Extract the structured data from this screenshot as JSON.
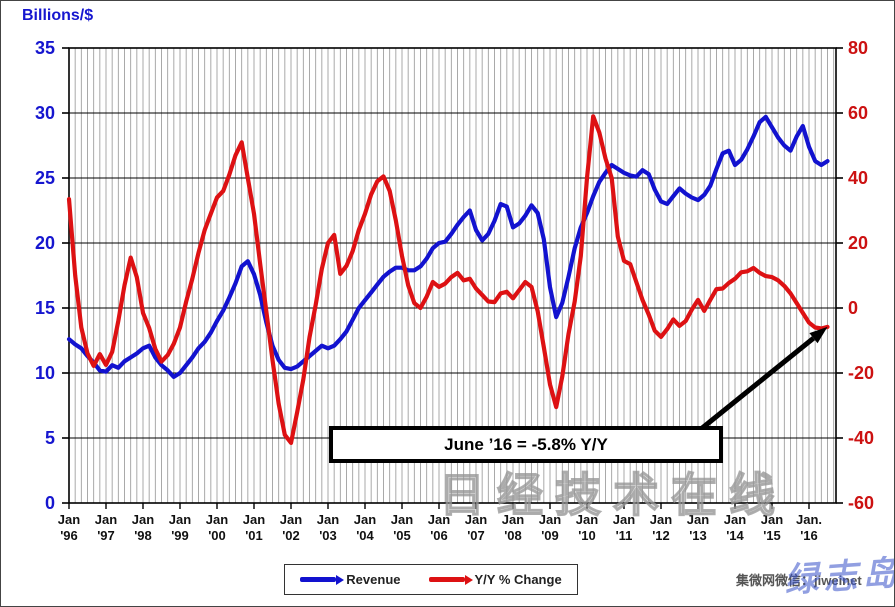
{
  "title": "Billions/$",
  "annotation": {
    "text": "June ’16 = -5.8% Y/Y"
  },
  "legend": {
    "items": [
      {
        "label": "Revenue",
        "color": "#1212cf"
      },
      {
        "label": "Y/Y % Change",
        "color": "#dd1113"
      }
    ]
  },
  "watermarks": {
    "large": "日经技术在线",
    "credit": "集微网微信：jiweinet",
    "signature": "绿志岛"
  },
  "colors": {
    "revenue_line": "#1212cf",
    "yoy_line": "#dd1113",
    "left_axis_text": "#1616cf",
    "right_axis_text": "#cc1111",
    "x_axis_text": "#111111",
    "grid_vertical": "#a0a0a0",
    "grid_horizontal": "#000000",
    "annotation_arrow": "#000000"
  },
  "chart_data": {
    "type": "line",
    "title": "Billions/$",
    "x_start_year": 1996,
    "x_step_months": 2,
    "x_tick_labels": [
      {
        "m": "Jan",
        "y": "'96"
      },
      {
        "m": "Jan",
        "y": "'97"
      },
      {
        "m": "Jan",
        "y": "'98"
      },
      {
        "m": "Jan",
        "y": "'99"
      },
      {
        "m": "Jan",
        "y": "'00"
      },
      {
        "m": "Jan",
        "y": "'01"
      },
      {
        "m": "Jan",
        "y": "'02"
      },
      {
        "m": "Jan",
        "y": "'03"
      },
      {
        "m": "Jan",
        "y": "'04"
      },
      {
        "m": "Jan",
        "y": "'05"
      },
      {
        "m": "Jan",
        "y": "'06"
      },
      {
        "m": "Jan",
        "y": "'07"
      },
      {
        "m": "Jan",
        "y": "'08"
      },
      {
        "m": "Jan",
        "y": "'09"
      },
      {
        "m": "Jan",
        "y": "'10"
      },
      {
        "m": "Jan",
        "y": "'11"
      },
      {
        "m": "Jan",
        "y": "'12"
      },
      {
        "m": "Jan",
        "y": "'13"
      },
      {
        "m": "Jan",
        "y": "'14"
      },
      {
        "m": "Jan",
        "y": "'15"
      },
      {
        "m": "Jan.",
        "y": "'16"
      }
    ],
    "y_left": {
      "label": "Billions/$",
      "min": 0,
      "max": 35,
      "tick_step": 5,
      "color": "#1616cf"
    },
    "y_right": {
      "label": "Y/Y % Change",
      "min": -60,
      "max": 80,
      "tick_step": 20,
      "color": "#cc1111"
    },
    "grid": {
      "vertical_every_months": 2,
      "horizontal_every_left_units": 5
    },
    "legend_position": "bottom-center",
    "annotation": {
      "text": "June ’16 = -5.8% Y/Y",
      "points_to": {
        "x_year": 2016.5,
        "series": "Y/Y % Change",
        "value": -5.8
      }
    },
    "series": [
      {
        "name": "Revenue",
        "axis": "left",
        "color": "#1212cf",
        "values": [
          12.6,
          12.2,
          11.9,
          11.3,
          10.8,
          10.2,
          10.1,
          10.6,
          10.4,
          10.9,
          11.2,
          11.5,
          11.9,
          12.1,
          11.2,
          10.6,
          10.2,
          9.7,
          10.0,
          10.6,
          11.2,
          11.9,
          12.4,
          13.1,
          14.0,
          14.8,
          15.8,
          16.9,
          18.2,
          18.6,
          17.6,
          16.0,
          13.9,
          12.1,
          11.0,
          10.4,
          10.3,
          10.5,
          10.9,
          11.3,
          11.7,
          12.1,
          11.9,
          12.1,
          12.6,
          13.2,
          14.1,
          15.0,
          15.6,
          16.2,
          16.8,
          17.4,
          17.8,
          18.1,
          18.1,
          17.9,
          17.9,
          18.2,
          18.8,
          19.6,
          20.0,
          20.1,
          20.7,
          21.4,
          22.0,
          22.5,
          21.0,
          20.2,
          20.7,
          21.7,
          23.0,
          22.8,
          21.2,
          21.5,
          22.1,
          22.9,
          22.3,
          20.3,
          16.6,
          14.3,
          15.4,
          17.4,
          19.6,
          21.2,
          22.3,
          23.6,
          24.7,
          25.4,
          26.0,
          25.7,
          25.4,
          25.2,
          25.1,
          25.6,
          25.3,
          24.1,
          23.2,
          23.0,
          23.6,
          24.2,
          23.8,
          23.5,
          23.3,
          23.7,
          24.4,
          25.7,
          26.9,
          27.1,
          26.0,
          26.4,
          27.2,
          28.2,
          29.3,
          29.7,
          28.9,
          28.1,
          27.5,
          27.1,
          28.2,
          29.0,
          27.4,
          26.3,
          26.0,
          26.3
        ]
      },
      {
        "name": "Y/Y % Change",
        "axis": "right",
        "color": "#dd1113",
        "values": [
          33.5,
          10,
          -6,
          -14,
          -17.8,
          -14.2,
          -17.5,
          -13.5,
          -4,
          7,
          15.5,
          9.5,
          -1.5,
          -6.2,
          -12.6,
          -16.5,
          -14.5,
          -11,
          -6,
          2,
          9,
          17,
          24,
          29,
          34,
          36,
          41,
          47,
          51,
          40,
          29,
          13.5,
          -1,
          -16,
          -29.5,
          -39,
          -41.5,
          -32,
          -22,
          -9,
          1,
          12,
          20,
          22.5,
          10.5,
          13,
          17.5,
          24,
          29,
          35,
          39,
          40.5,
          36,
          27,
          16,
          7,
          1.5,
          0,
          3.5,
          8,
          6.5,
          7.5,
          9.5,
          10.8,
          8.5,
          9,
          6,
          4,
          2,
          1.8,
          4.5,
          5,
          3,
          5.5,
          8,
          6.5,
          -1,
          -12,
          -23.5,
          -30.5,
          -21,
          -8,
          2,
          16,
          40,
          59,
          54,
          46,
          40,
          22,
          14.5,
          13.5,
          8,
          2.5,
          -2,
          -7,
          -8.9,
          -6.5,
          -3.5,
          -5.5,
          -4,
          -0.5,
          2.5,
          -0.9,
          2.5,
          5.8,
          6,
          7.7,
          9,
          11,
          11.3,
          12.3,
          10.8,
          9.8,
          9.5,
          8.5,
          6.8,
          4.5,
          1.5,
          -1.5,
          -4.5,
          -6,
          -6.3,
          -5.8
        ]
      }
    ]
  }
}
